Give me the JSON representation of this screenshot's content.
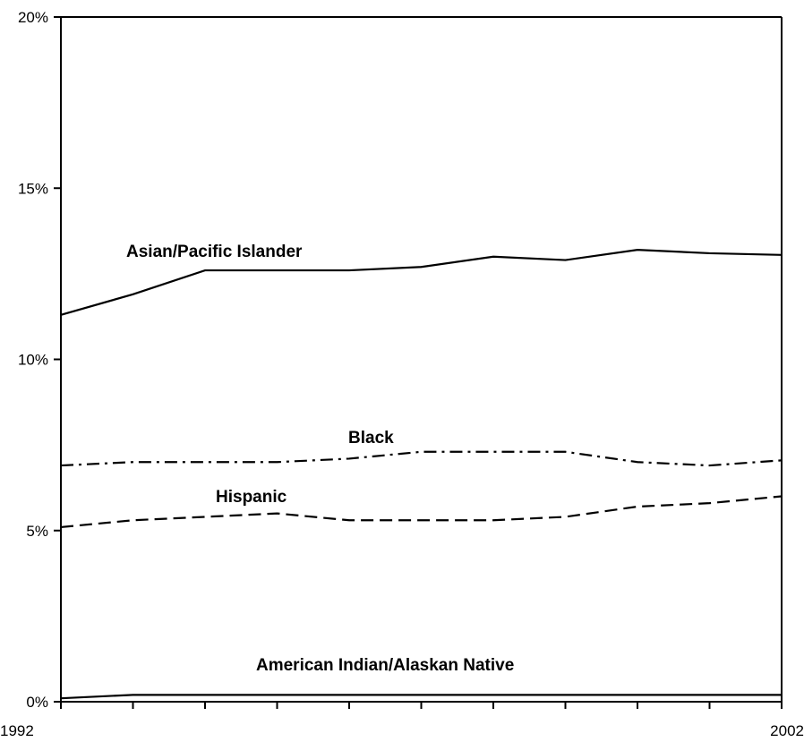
{
  "chart_data": {
    "type": "line",
    "x": [
      1992,
      1993,
      1994,
      1995,
      1996,
      1997,
      1998,
      1999,
      2000,
      2001,
      2002
    ],
    "xlim": [
      1992,
      2002
    ],
    "x_tick_labels": [
      "1992",
      "2002"
    ],
    "ylim": [
      0,
      20
    ],
    "y_ticks": [
      0,
      5,
      10,
      15,
      20
    ],
    "y_tick_labels": [
      "0%",
      "5%",
      "10%",
      "15%",
      "20%"
    ],
    "grid": false,
    "legend": "none",
    "series": [
      {
        "name": "Asian/Pacific Islander",
        "line_style": "solid",
        "values": [
          11.3,
          11.9,
          12.6,
          12.6,
          12.6,
          12.7,
          13.0,
          12.9,
          13.2,
          13.1,
          13.05
        ]
      },
      {
        "name": "Black",
        "line_style": "dash-dot",
        "values": [
          6.9,
          7.0,
          7.0,
          7.0,
          7.1,
          7.3,
          7.3,
          7.3,
          7.0,
          6.9,
          7.05
        ]
      },
      {
        "name": "Hispanic",
        "line_style": "dashed",
        "values": [
          5.1,
          5.3,
          5.4,
          5.5,
          5.3,
          5.3,
          5.3,
          5.4,
          5.7,
          5.8,
          6.0
        ]
      },
      {
        "name": "American Indian/Alaskan Native",
        "line_style": "solid",
        "values": [
          0.1,
          0.2,
          0.2,
          0.2,
          0.2,
          0.2,
          0.2,
          0.2,
          0.2,
          0.2,
          0.2
        ]
      }
    ]
  }
}
